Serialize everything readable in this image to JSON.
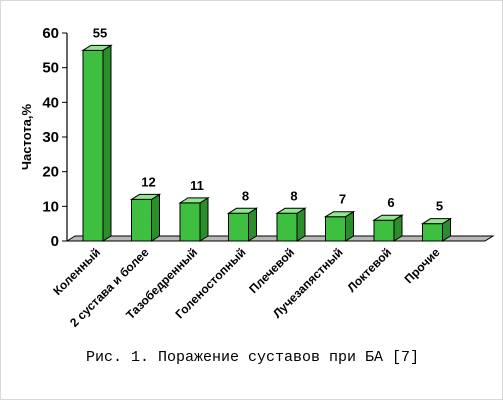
{
  "chart_data": {
    "type": "bar",
    "ylabel": "Частота,%",
    "xlabel": "",
    "ylim": [
      0,
      60
    ],
    "yticks": [
      0,
      10,
      20,
      30,
      40,
      50,
      60
    ],
    "categories": [
      "Коленный",
      "2 сустава и более",
      "Тазобедренный",
      "Голеностопный",
      "Плечевой",
      "Лучезапястный",
      "Локтевой",
      "Прочие"
    ],
    "values": [
      55,
      12,
      11,
      8,
      8,
      7,
      6,
      5
    ],
    "bar_color": "#3fbf3f",
    "bar_top_color": "#8fe88f",
    "bar_side_color": "#2a8f2a",
    "grid": false
  },
  "caption": "Рис. 1. Поражение суставов при БА [7]"
}
